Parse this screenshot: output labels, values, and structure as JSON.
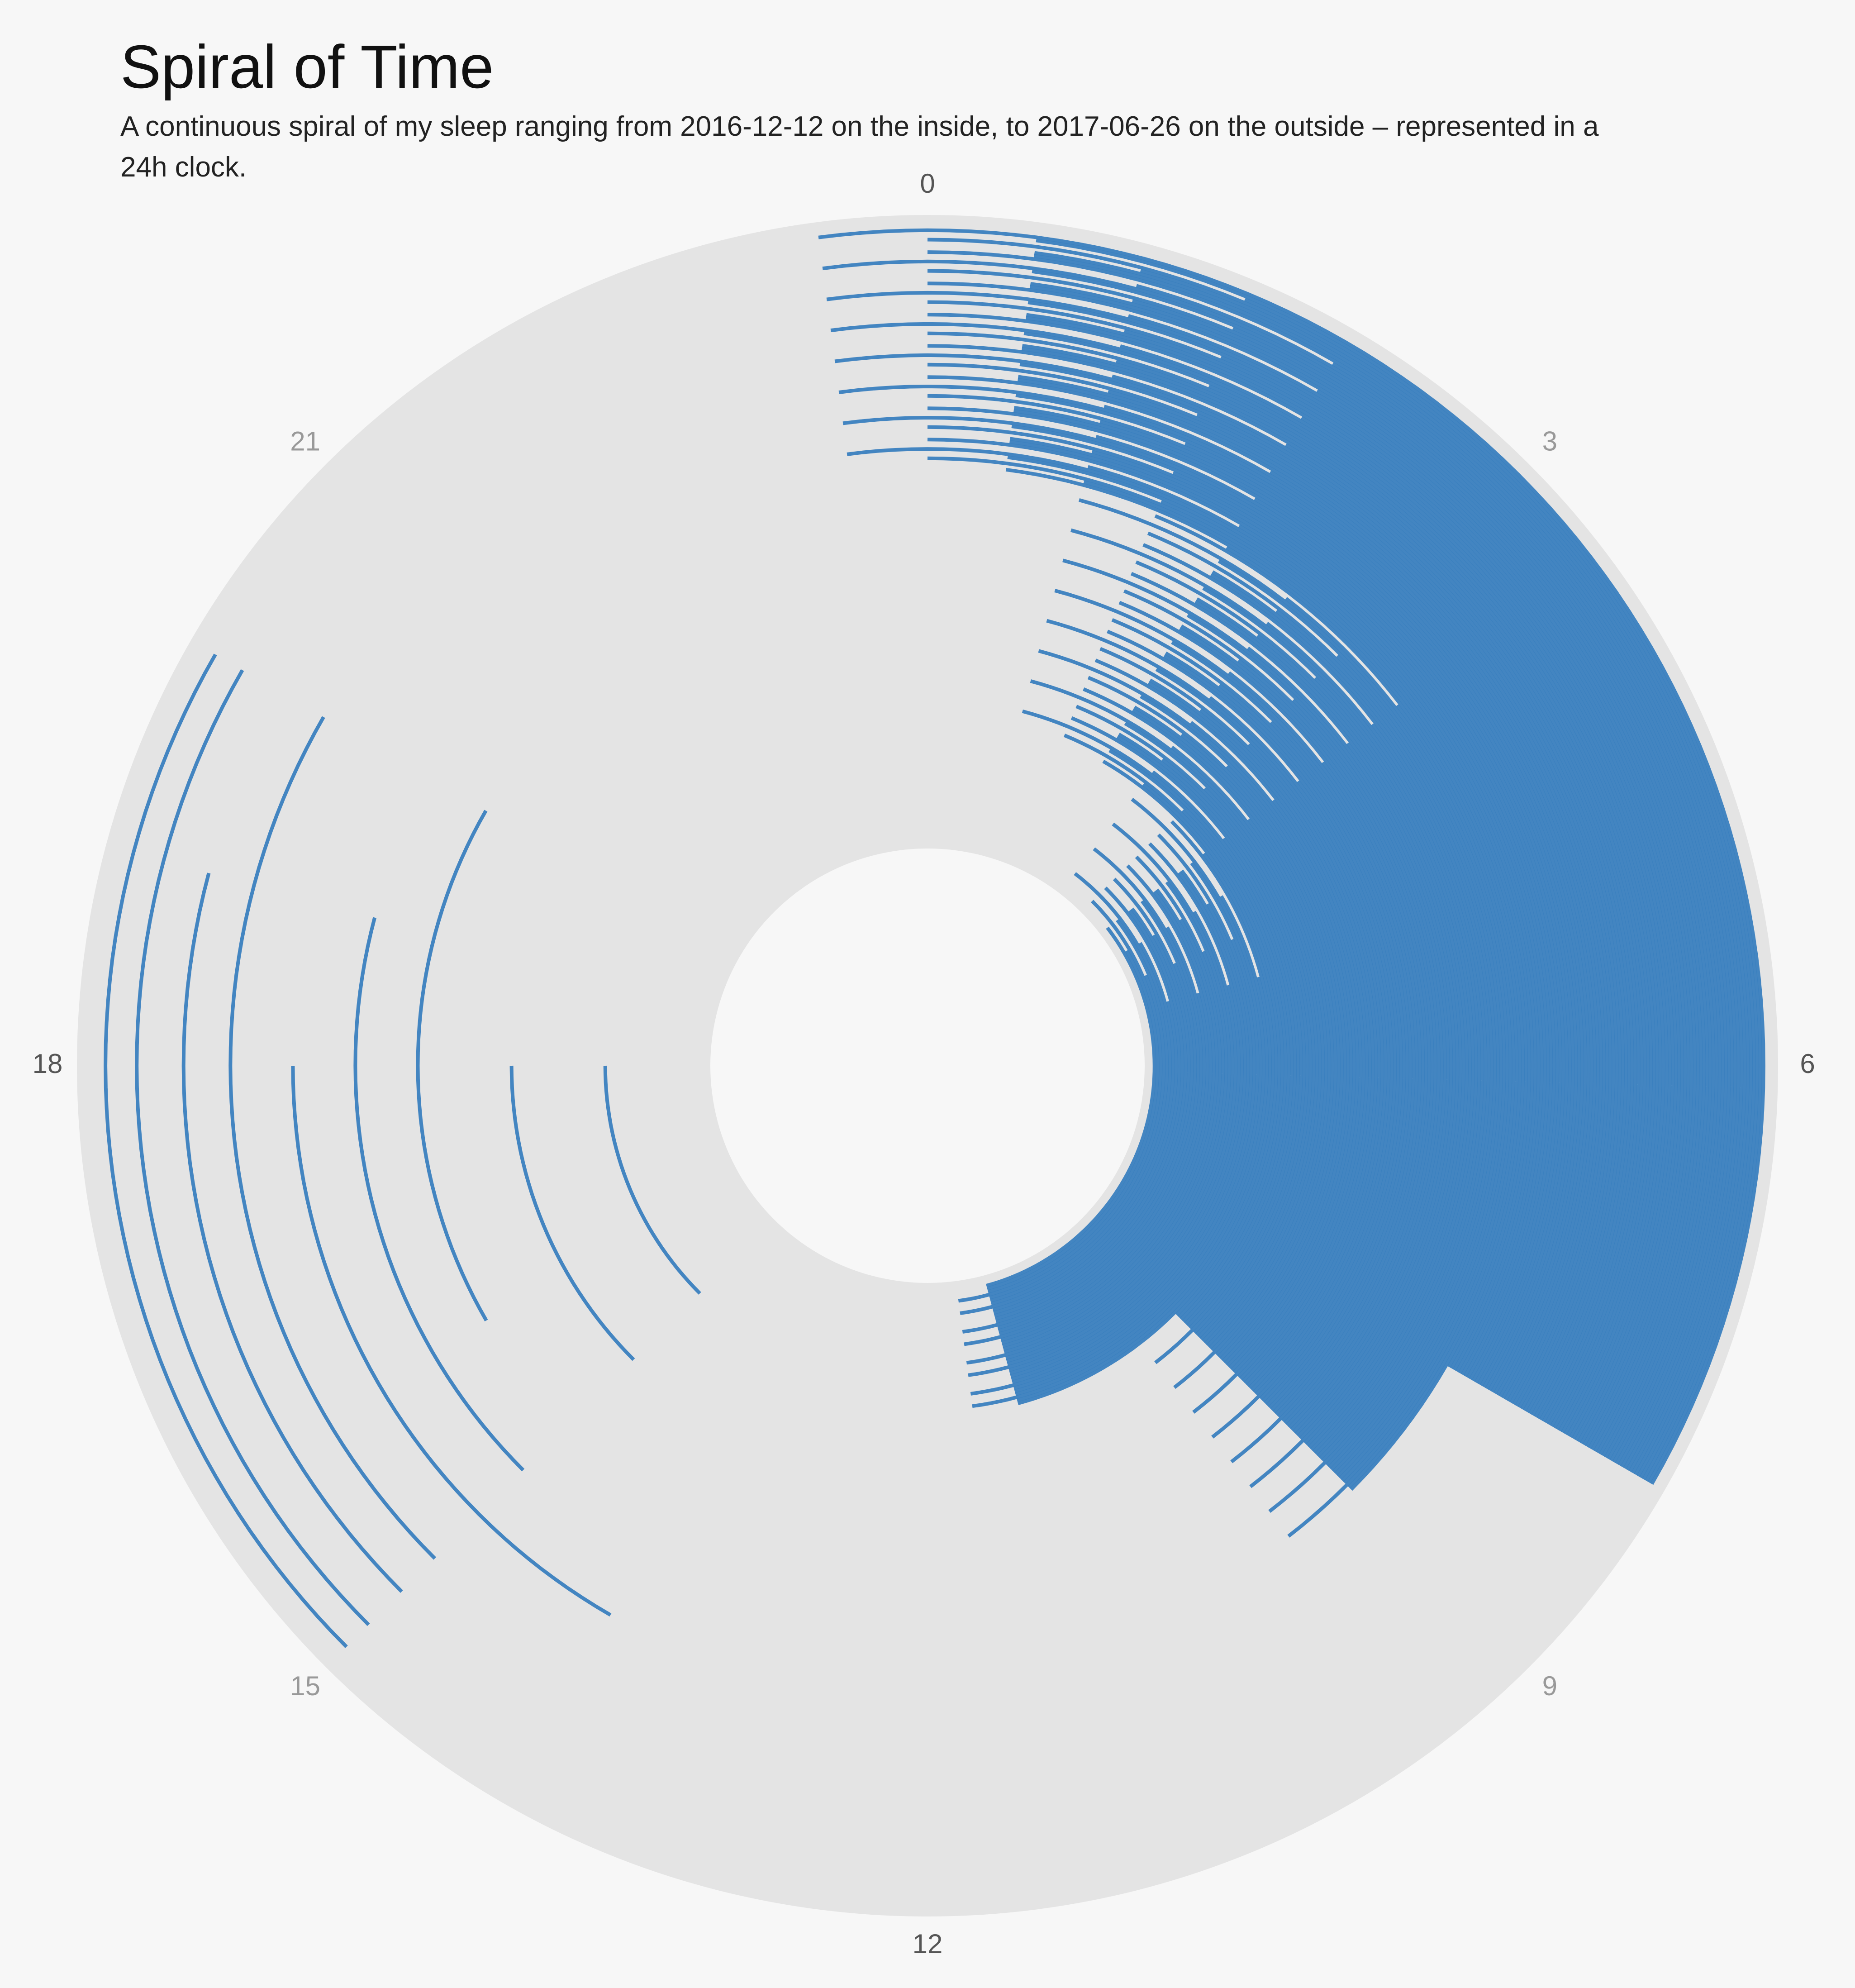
{
  "chart_data": {
    "type": "spiral",
    "title": "Spiral of Time",
    "subtitle": "A continuous spiral of my sleep ranging from 2016-12-12 on the inside, to 2017-06-26 on the outside – represented in a 24h clock.",
    "xlim": [
      0,
      24
    ],
    "xticks": [
      0,
      3,
      6,
      9,
      12,
      15,
      18,
      21
    ],
    "rlim": [
      0,
      4728
    ],
    "series": [
      {
        "color": "#3a7fbf",
        "start": [
          3.5,
          28,
          51,
          76.5,
          99.5,
          122.5,
          148,
          173,
          195,
          219.5,
          243.5,
          268,
          291,
          316.5,
          339.5,
          362.5,
          388,
          413,
          435,
          459.5,
          483.5,
          508,
          531,
          556.5,
          579.5,
          602.5,
          628,
          653,
          675,
          699.5,
          723.5,
          748,
          771,
          796.5,
          819.5,
          842.5,
          868,
          893,
          915,
          939.5,
          962,
          986.5,
          1009.5,
          1035,
          1058,
          1081,
          1106.5,
          1131.5,
          1153.5,
          1178,
          1202,
          1226.5,
          1249.5,
          1275,
          1298,
          1321,
          1346.5,
          1371.5,
          1393.5,
          1418,
          1442,
          1466.5,
          1489.5,
          1515,
          1538,
          1561,
          1586.5,
          1611.5,
          1633.5,
          1658,
          1682,
          1706.5,
          1729.5,
          1755,
          1778,
          1801,
          1826.5,
          1851.5,
          1873.5,
          1898,
          1922,
          1946.5,
          1969.5,
          1995,
          2018,
          2041,
          2066.5,
          2091.5,
          2113.5,
          2138,
          2162,
          2186.5,
          2209.5,
          2235,
          2258,
          2281,
          2306.5,
          2331.5,
          2353.5,
          2378,
          2402,
          2426.5,
          2449.5,
          2475,
          2498,
          2521,
          2546.5,
          2571.5,
          2593.5,
          2618,
          2642,
          2666.5,
          2689.5,
          2715,
          2738,
          2761,
          2786.5,
          2811.5,
          2833.5,
          2858,
          2880.5,
          2905,
          2928,
          2953.5,
          2976.5,
          2999.5,
          3025,
          3050,
          3072,
          3096.5,
          3120.5,
          3145,
          3168,
          3193.5,
          3216.5,
          3239.5,
          3265,
          3290,
          3312,
          3336.5,
          3360.5,
          3385,
          3408,
          3433.5,
          3456.5,
          3479.5,
          3505,
          3530,
          3552,
          3576.5,
          3600.5,
          3625,
          3648,
          3673.5,
          3696.5,
          3719.5,
          3745,
          3770,
          3792,
          3816.5,
          3840.5,
          3865,
          3888,
          3913.5,
          3936.5,
          3959.5,
          3985,
          4010,
          4032,
          4056.5,
          4080.5,
          4105,
          4128,
          4153.5,
          4176.5,
          4199.5,
          4225,
          4250,
          4272,
          4296.5,
          4320.5,
          4345,
          4368,
          4393.5,
          4416.5,
          4439.5,
          4465,
          4490,
          4512,
          4536.5,
          4560.5,
          4585,
          4608,
          4633.5,
          4656.5,
          4679.5,
          735,
          1455,
          2176,
          2655,
          3134,
          3615,
          3975,
          4335,
          4575
        ],
        "end": [
          11,
          35,
          59,
          83.5,
          107,
          131,
          155,
          179.5,
          203,
          227,
          251,
          275,
          299,
          323.5,
          347,
          371,
          395,
          419.5,
          443,
          467,
          491,
          515,
          539,
          563.5,
          587,
          611,
          635,
          659.5,
          683,
          707,
          731,
          755,
          779,
          803.5,
          827,
          851,
          875,
          899.5,
          923,
          947,
          969,
          993,
          1017,
          1041,
          1065,
          1089,
          1113,
          1137.5,
          1161,
          1185,
          1209,
          1233,
          1257,
          1281,
          1305,
          1329,
          1353,
          1377.5,
          1401,
          1425,
          1449,
          1473,
          1497,
          1521,
          1545,
          1569,
          1593,
          1617.5,
          1641,
          1665,
          1689,
          1713,
          1737,
          1761,
          1785,
          1809,
          1833,
          1857.5,
          1881,
          1905,
          1929,
          1953,
          1977,
          2001,
          2025,
          2049,
          2073,
          2097.5,
          2121,
          2145,
          2169,
          2193,
          2217,
          2241,
          2265,
          2289,
          2313,
          2337.5,
          2361,
          2385,
          2409,
          2433,
          2457,
          2481,
          2505,
          2529,
          2553,
          2577.5,
          2601,
          2625,
          2649,
          2673,
          2697,
          2721,
          2745,
          2769,
          2793,
          2817.5,
          2841,
          2865,
          2888,
          2912,
          2936,
          2960,
          2984,
          3008,
          3032,
          3056,
          3080,
          3104,
          3128,
          3152,
          3176,
          3200,
          3224,
          3248,
          3272,
          3296,
          3320,
          3344,
          3368,
          3392,
          3416,
          3440,
          3464,
          3488,
          3512,
          3536,
          3560,
          3584,
          3608,
          3632,
          3656,
          3680,
          3704,
          3728,
          3752,
          3776,
          3800,
          3824,
          3848,
          3872,
          3896,
          3920,
          3944,
          3968,
          3992,
          4016,
          4040,
          4064,
          4088,
          4112,
          4136,
          4160,
          4184,
          4208,
          4232,
          4256,
          4280,
          4304,
          4328,
          4352,
          4376,
          4400,
          4424,
          4448,
          4472,
          4496,
          4520,
          4544,
          4568,
          4592,
          4616,
          4640,
          4664,
          4688,
          738,
          1458,
          2180,
          2659,
          3138,
          3620,
          3979,
          4340,
          4580
        ]
      }
    ]
  }
}
